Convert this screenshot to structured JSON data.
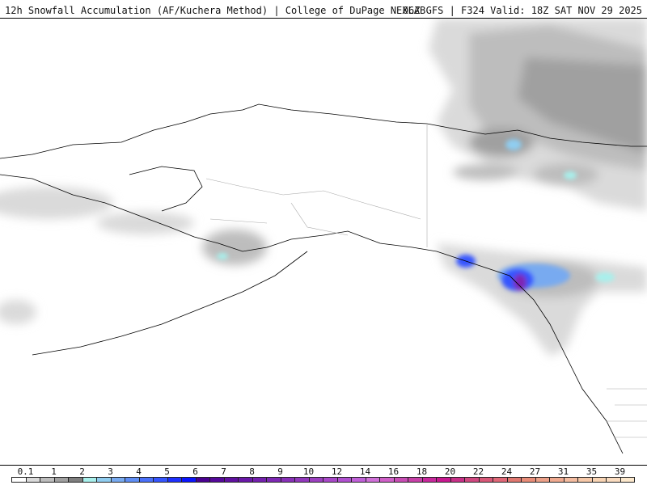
{
  "header": {
    "title": "12h Snowfall Accumulation (AF/Kuchera Method) | College of DuPage NEXLAB",
    "run_info": "06Z GFS | F324 Valid: 18Z SAT NOV 29 2025"
  },
  "colorbar": {
    "labels": [
      "0.1",
      "1",
      "2",
      "3",
      "4",
      "5",
      "6",
      "7",
      "8",
      "9",
      "10",
      "12",
      "14",
      "16",
      "18",
      "20",
      "22",
      "24",
      "27",
      "31",
      "35",
      "39"
    ],
    "colors": [
      "#ffffff",
      "#dadada",
      "#bdbdbd",
      "#a0a0a0",
      "#7f7f7f",
      "#a8f0ec",
      "#90cdf0",
      "#78aaf0",
      "#5f8ef5",
      "#4a70fa",
      "#3555ff",
      "#1e30ff",
      "#0a14ff",
      "#4a0090",
      "#55089a",
      "#6010a0",
      "#6a18a8",
      "#7420ae",
      "#7e28b4",
      "#8830b8",
      "#9238bc",
      "#9c40c0",
      "#a848c8",
      "#b050d0",
      "#c060d8",
      "#d070d8",
      "#d060c8",
      "#c84cb4",
      "#c840a8",
      "#c8289c",
      "#c81890",
      "#c83088",
      "#d04880",
      "#d85878",
      "#e06878",
      "#e07870",
      "#e88c78",
      "#eca088",
      "#f0aa90",
      "#f4bca0",
      "#f6c8a8",
      "#f8d4b4",
      "#fadcc0",
      "#fce8cc"
    ]
  }
}
